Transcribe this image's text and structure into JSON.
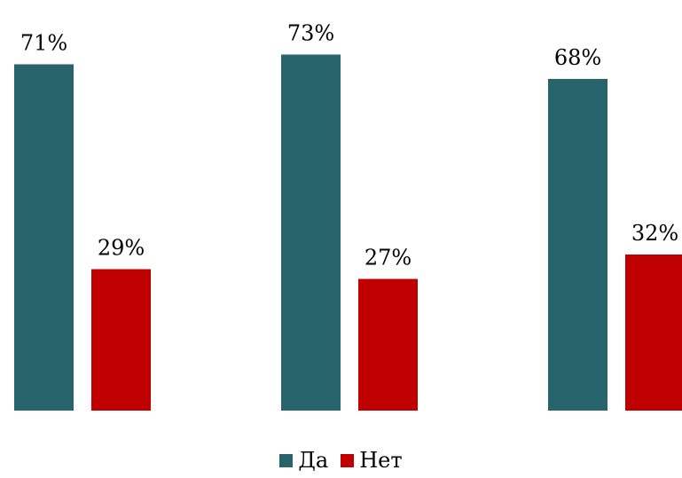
{
  "chart_data": {
    "type": "bar",
    "categories": [
      "",
      "",
      ""
    ],
    "series": [
      {
        "name": "Да",
        "color": "#27646b",
        "values": [
          71,
          73,
          68
        ],
        "labels": [
          "71%",
          "73%",
          "68%"
        ]
      },
      {
        "name": "Нет",
        "color": "#c00000",
        "values": [
          29,
          27,
          32
        ],
        "labels": [
          "29%",
          "27%",
          "32%"
        ]
      }
    ],
    "title": "",
    "xlabel": "",
    "ylabel": "",
    "ylim": [
      0,
      100
    ],
    "grid": false,
    "axes_visible": false,
    "legend_position": "bottom-center"
  }
}
